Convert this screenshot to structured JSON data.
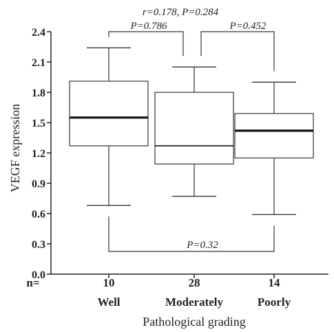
{
  "chart_data": {
    "type": "box",
    "ylabel": "VEGF expression",
    "xlabel": "Pathological grading",
    "n_label": "n=",
    "ylim": [
      0.0,
      2.4
    ],
    "yticks": [
      "0.0",
      "0.3",
      "0.6",
      "0.9",
      "1.2",
      "1.5",
      "1.8",
      "2.1",
      "2.4"
    ],
    "ytick_values": [
      0.0,
      0.3,
      0.6,
      0.9,
      1.2,
      1.5,
      1.8,
      2.1,
      2.4
    ],
    "grid": false,
    "groups": [
      {
        "category": "Well",
        "n": "10",
        "min": 0.68,
        "q1": 1.27,
        "median": 1.55,
        "q3": 1.91,
        "max": 2.24
      },
      {
        "category": "Moderately",
        "n": "28",
        "min": 0.77,
        "q1": 1.09,
        "median": 1.27,
        "q3": 1.8,
        "max": 2.05
      },
      {
        "category": "Poorly",
        "n": "14",
        "min": 0.59,
        "q1": 1.15,
        "median": 1.42,
        "q3": 1.59,
        "max": 1.9
      }
    ],
    "annotations": {
      "top": "r=0.178, P=0.284",
      "well_vs_moderately": "P=0.786",
      "moderately_vs_poorly": "P=0.452",
      "well_vs_poorly": "P=0.32"
    }
  }
}
